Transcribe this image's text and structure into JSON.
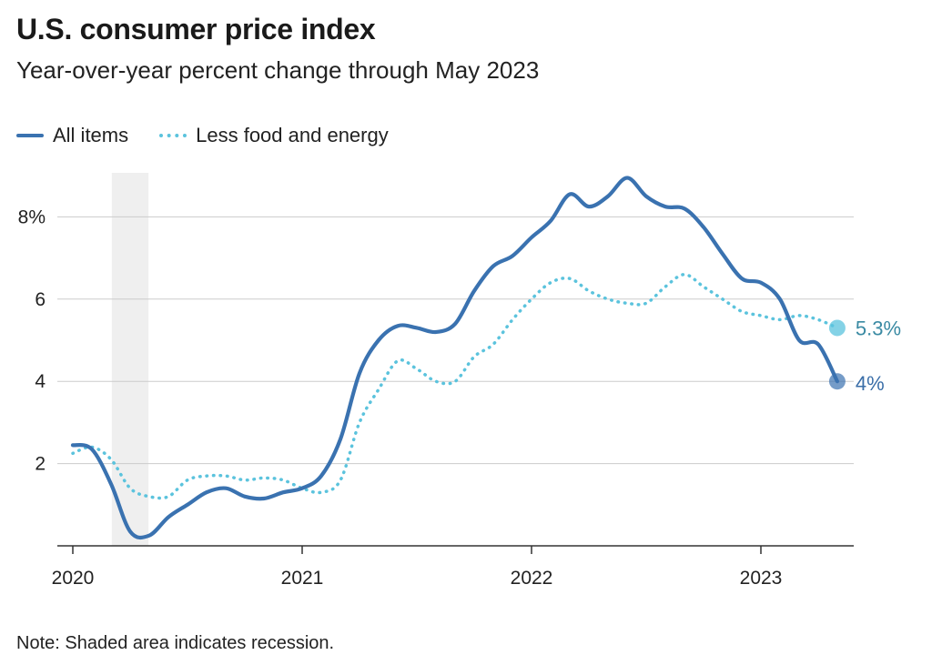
{
  "chart_data": {
    "type": "line",
    "title": "U.S. consumer price index",
    "subtitle": "Year-over-year percent change through May 2023",
    "note": "Note: Shaded area indicates recession.",
    "x_unit": "year (decimal)",
    "xlim": [
      2020.0,
      2023.4
    ],
    "ylim": [
      0,
      9.3
    ],
    "x_ticks": [
      {
        "value": 2020,
        "label": "2020"
      },
      {
        "value": 2021,
        "label": "2021"
      },
      {
        "value": 2022,
        "label": "2022"
      },
      {
        "value": 2023,
        "label": "2023"
      }
    ],
    "y_ticks": [
      {
        "value": 2,
        "label": "2"
      },
      {
        "value": 4,
        "label": "4"
      },
      {
        "value": 6,
        "label": "6"
      },
      {
        "value": 8,
        "label": "8%"
      }
    ],
    "grid": "horizontal",
    "legend_position": "top-left",
    "recession": {
      "start": 2020.17,
      "end": 2020.33
    },
    "series": [
      {
        "name": "All items",
        "style": "solid",
        "color": "#3a72b0",
        "end_label": "4%",
        "points": [
          [
            2020.0,
            2.45
          ],
          [
            2020.083,
            2.35
          ],
          [
            2020.167,
            1.5
          ],
          [
            2020.25,
            0.35
          ],
          [
            2020.333,
            0.25
          ],
          [
            2020.417,
            0.7
          ],
          [
            2020.5,
            1.0
          ],
          [
            2020.583,
            1.3
          ],
          [
            2020.667,
            1.4
          ],
          [
            2020.75,
            1.2
          ],
          [
            2020.833,
            1.15
          ],
          [
            2020.917,
            1.3
          ],
          [
            2021.0,
            1.4
          ],
          [
            2021.083,
            1.7
          ],
          [
            2021.167,
            2.6
          ],
          [
            2021.25,
            4.2
          ],
          [
            2021.333,
            5.0
          ],
          [
            2021.417,
            5.35
          ],
          [
            2021.5,
            5.3
          ],
          [
            2021.583,
            5.2
          ],
          [
            2021.667,
            5.4
          ],
          [
            2021.75,
            6.2
          ],
          [
            2021.833,
            6.8
          ],
          [
            2021.917,
            7.05
          ],
          [
            2022.0,
            7.5
          ],
          [
            2022.083,
            7.9
          ],
          [
            2022.167,
            8.55
          ],
          [
            2022.25,
            8.25
          ],
          [
            2022.333,
            8.5
          ],
          [
            2022.417,
            8.95
          ],
          [
            2022.5,
            8.5
          ],
          [
            2022.583,
            8.25
          ],
          [
            2022.667,
            8.2
          ],
          [
            2022.75,
            7.75
          ],
          [
            2022.833,
            7.1
          ],
          [
            2022.917,
            6.5
          ],
          [
            2023.0,
            6.4
          ],
          [
            2023.083,
            6.0
          ],
          [
            2023.167,
            5.0
          ],
          [
            2023.25,
            4.9
          ],
          [
            2023.333,
            4.0
          ]
        ]
      },
      {
        "name": "Less food and energy",
        "style": "dotted",
        "color": "#5bc3dd",
        "end_label": "5.3%",
        "points": [
          [
            2020.0,
            2.25
          ],
          [
            2020.083,
            2.4
          ],
          [
            2020.167,
            2.1
          ],
          [
            2020.25,
            1.4
          ],
          [
            2020.333,
            1.2
          ],
          [
            2020.417,
            1.2
          ],
          [
            2020.5,
            1.6
          ],
          [
            2020.583,
            1.7
          ],
          [
            2020.667,
            1.7
          ],
          [
            2020.75,
            1.6
          ],
          [
            2020.833,
            1.65
          ],
          [
            2020.917,
            1.6
          ],
          [
            2021.0,
            1.4
          ],
          [
            2021.083,
            1.3
          ],
          [
            2021.167,
            1.6
          ],
          [
            2021.25,
            3.0
          ],
          [
            2021.333,
            3.8
          ],
          [
            2021.417,
            4.5
          ],
          [
            2021.5,
            4.3
          ],
          [
            2021.583,
            4.0
          ],
          [
            2021.667,
            4.0
          ],
          [
            2021.75,
            4.6
          ],
          [
            2021.833,
            4.9
          ],
          [
            2021.917,
            5.5
          ],
          [
            2022.0,
            6.0
          ],
          [
            2022.083,
            6.4
          ],
          [
            2022.167,
            6.5
          ],
          [
            2022.25,
            6.2
          ],
          [
            2022.333,
            6.0
          ],
          [
            2022.417,
            5.9
          ],
          [
            2022.5,
            5.9
          ],
          [
            2022.583,
            6.3
          ],
          [
            2022.667,
            6.6
          ],
          [
            2022.75,
            6.3
          ],
          [
            2022.833,
            6.0
          ],
          [
            2022.917,
            5.7
          ],
          [
            2023.0,
            5.6
          ],
          [
            2023.083,
            5.5
          ],
          [
            2023.167,
            5.6
          ],
          [
            2023.25,
            5.5
          ],
          [
            2023.333,
            5.3
          ]
        ]
      }
    ]
  }
}
